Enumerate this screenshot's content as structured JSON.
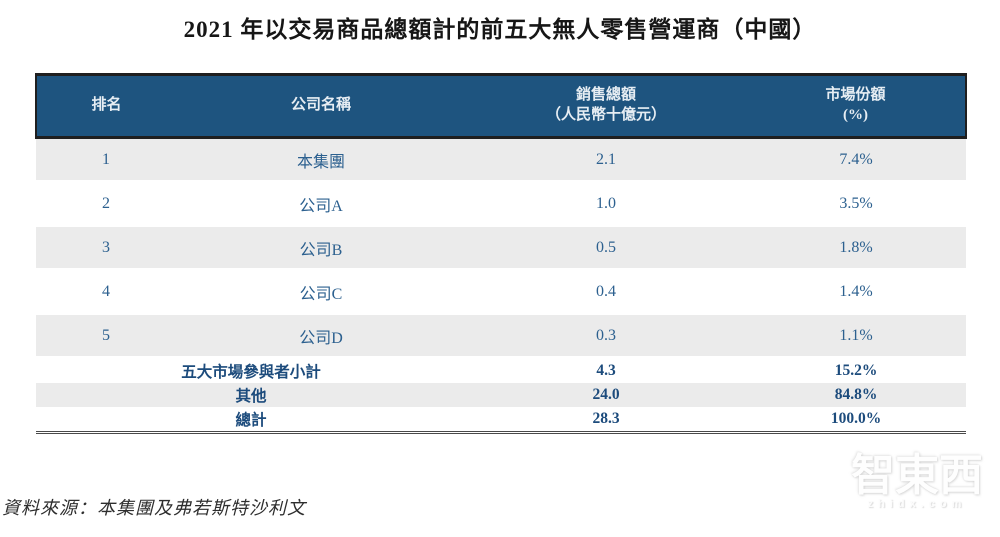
{
  "title": "2021 年以交易商品總額計的前五大無人零售營運商（中國）",
  "table": {
    "headers": {
      "rank": "排名",
      "company": "公司名稱",
      "sales": "銷售總額",
      "sales_sub": "（人民幣十億元）",
      "share": "市場份額",
      "share_sub": "(%)"
    },
    "rows": [
      {
        "rank": "1",
        "company": "本集團",
        "sales": "2.1",
        "share": "7.4%"
      },
      {
        "rank": "2",
        "company": "公司A",
        "sales": "1.0",
        "share": "3.5%"
      },
      {
        "rank": "3",
        "company": "公司B",
        "sales": "0.5",
        "share": "1.8%"
      },
      {
        "rank": "4",
        "company": "公司C",
        "sales": "0.4",
        "share": "1.4%"
      },
      {
        "rank": "5",
        "company": "公司D",
        "sales": "0.3",
        "share": "1.1%"
      }
    ],
    "summary": [
      {
        "label": "五大市場參與者小計",
        "sales": "4.3",
        "share": "15.2%"
      },
      {
        "label": "其他",
        "sales": "24.0",
        "share": "84.8%"
      },
      {
        "label": "總計",
        "sales": "28.3",
        "share": "100.0%"
      }
    ]
  },
  "source": "資料來源：本集團及弗若斯特沙利文",
  "watermark": {
    "text": "智東西",
    "domain": "zhidx.com"
  },
  "colors": {
    "header_bg": "#1E547F",
    "header_text": "#E6EDF3",
    "row_alt_bg": "#EBEBEB",
    "body_text": "#2C608F",
    "summary_text": "#1C4B7C"
  }
}
